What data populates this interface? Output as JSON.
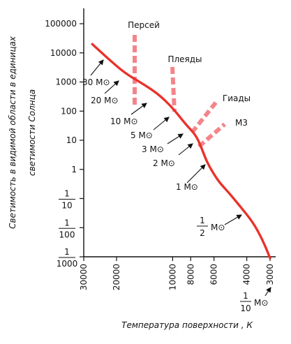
{
  "chart_data": {
    "type": "line",
    "xlabel": "Температура поверхности , К",
    "ylabel_lines": [
      "Светимость в видимой области в единицах",
      "светимости Солнца"
    ],
    "x_scale": "log, reversed",
    "y_scale": "log",
    "xlim": [
      30000,
      2800
    ],
    "ylim": [
      0.001,
      100000
    ],
    "x_ticks": [
      {
        "value": 30000,
        "label": "30000"
      },
      {
        "value": 20000,
        "label": "20000"
      },
      {
        "value": 10000,
        "label": "10000"
      },
      {
        "value": 8000,
        "label": "8000"
      },
      {
        "value": 6000,
        "label": "6000"
      },
      {
        "value": 4000,
        "label": "4000"
      },
      {
        "value": 3000,
        "label": "3000"
      }
    ],
    "y_ticks": [
      {
        "value": 100000,
        "label": "100000"
      },
      {
        "value": 10000,
        "label": "10000"
      },
      {
        "value": 1000,
        "label": "1000"
      },
      {
        "value": 100,
        "label": "100"
      },
      {
        "value": 10,
        "label": "10"
      },
      {
        "value": 1,
        "label": "1"
      },
      {
        "value": 0.1,
        "num": "1",
        "den": "10"
      },
      {
        "value": 0.01,
        "num": "1",
        "den": "100"
      },
      {
        "value": 0.001,
        "num": "1",
        "den": "1000"
      }
    ],
    "series": [
      {
        "name": "",
        "color": "#e8322b",
        "points": [
          [
            27000,
            20000
          ],
          [
            22000,
            6000
          ],
          [
            18000,
            2000
          ],
          [
            15000,
            1000
          ],
          [
            12000,
            400
          ],
          [
            10000,
            130
          ],
          [
            8500,
            35
          ],
          [
            7500,
            15
          ],
          [
            7000,
            5.5
          ],
          [
            6600,
            2
          ],
          [
            6100,
            0.8
          ],
          [
            5600,
            0.35
          ],
          [
            5000,
            0.16
          ],
          [
            4300,
            0.05
          ],
          [
            3700,
            0.015
          ],
          [
            3300,
            0.004
          ],
          [
            3000,
            0.0009
          ]
        ]
      }
    ],
    "mass_annotations": [
      {
        "num": "30",
        "label": "30 M⊙",
        "x": 26000,
        "y": 16000,
        "anchor": "end"
      },
      {
        "num": "20",
        "label": "20 M⊙",
        "x": 20000,
        "y": 4500,
        "anchor": "end"
      },
      {
        "num": "10",
        "label": "10 M⊙",
        "x": 15000,
        "y": 1000,
        "anchor": "end"
      },
      {
        "num": "5",
        "label": "5 M⊙",
        "x": 10000,
        "y": 130,
        "anchor": "end"
      },
      {
        "num": "3",
        "label": "3 M⊙",
        "x": 8200,
        "y": 30,
        "anchor": "end"
      },
      {
        "num": "2",
        "label": "2 M⊙",
        "x": 7100,
        "y": 8,
        "anchor": "end"
      },
      {
        "num": "1",
        "label": "1 M⊙",
        "x": 5900,
        "y": 0.6,
        "anchor": "end"
      },
      {
        "num": "1/2",
        "num_top": "1",
        "num_bottom": "2",
        "label": "1/2 M⊙",
        "x": 4200,
        "y": 0.045,
        "anchor": "end"
      },
      {
        "num": "1/10",
        "num_top": "1",
        "num_bottom": "10",
        "label": "1/10 M⊙",
        "x": 3000,
        "y": 0.0009,
        "anchor": "end"
      }
    ],
    "cluster_labels": [
      {
        "label": "Персей",
        "x": 19500,
        "y": 20000,
        "color": "#f08070"
      },
      {
        "label": "Плеяды",
        "x": 10500,
        "y": 1000,
        "color": "#f08070"
      },
      {
        "label": "Гиады",
        "x": 7400,
        "y": 200,
        "color": "#f08070"
      },
      {
        "label": "М3",
        "x": 6900,
        "y": 10,
        "color": "#f08070"
      }
    ],
    "solar_symbol": "M⊙",
    "grid": false,
    "legend": "none"
  }
}
